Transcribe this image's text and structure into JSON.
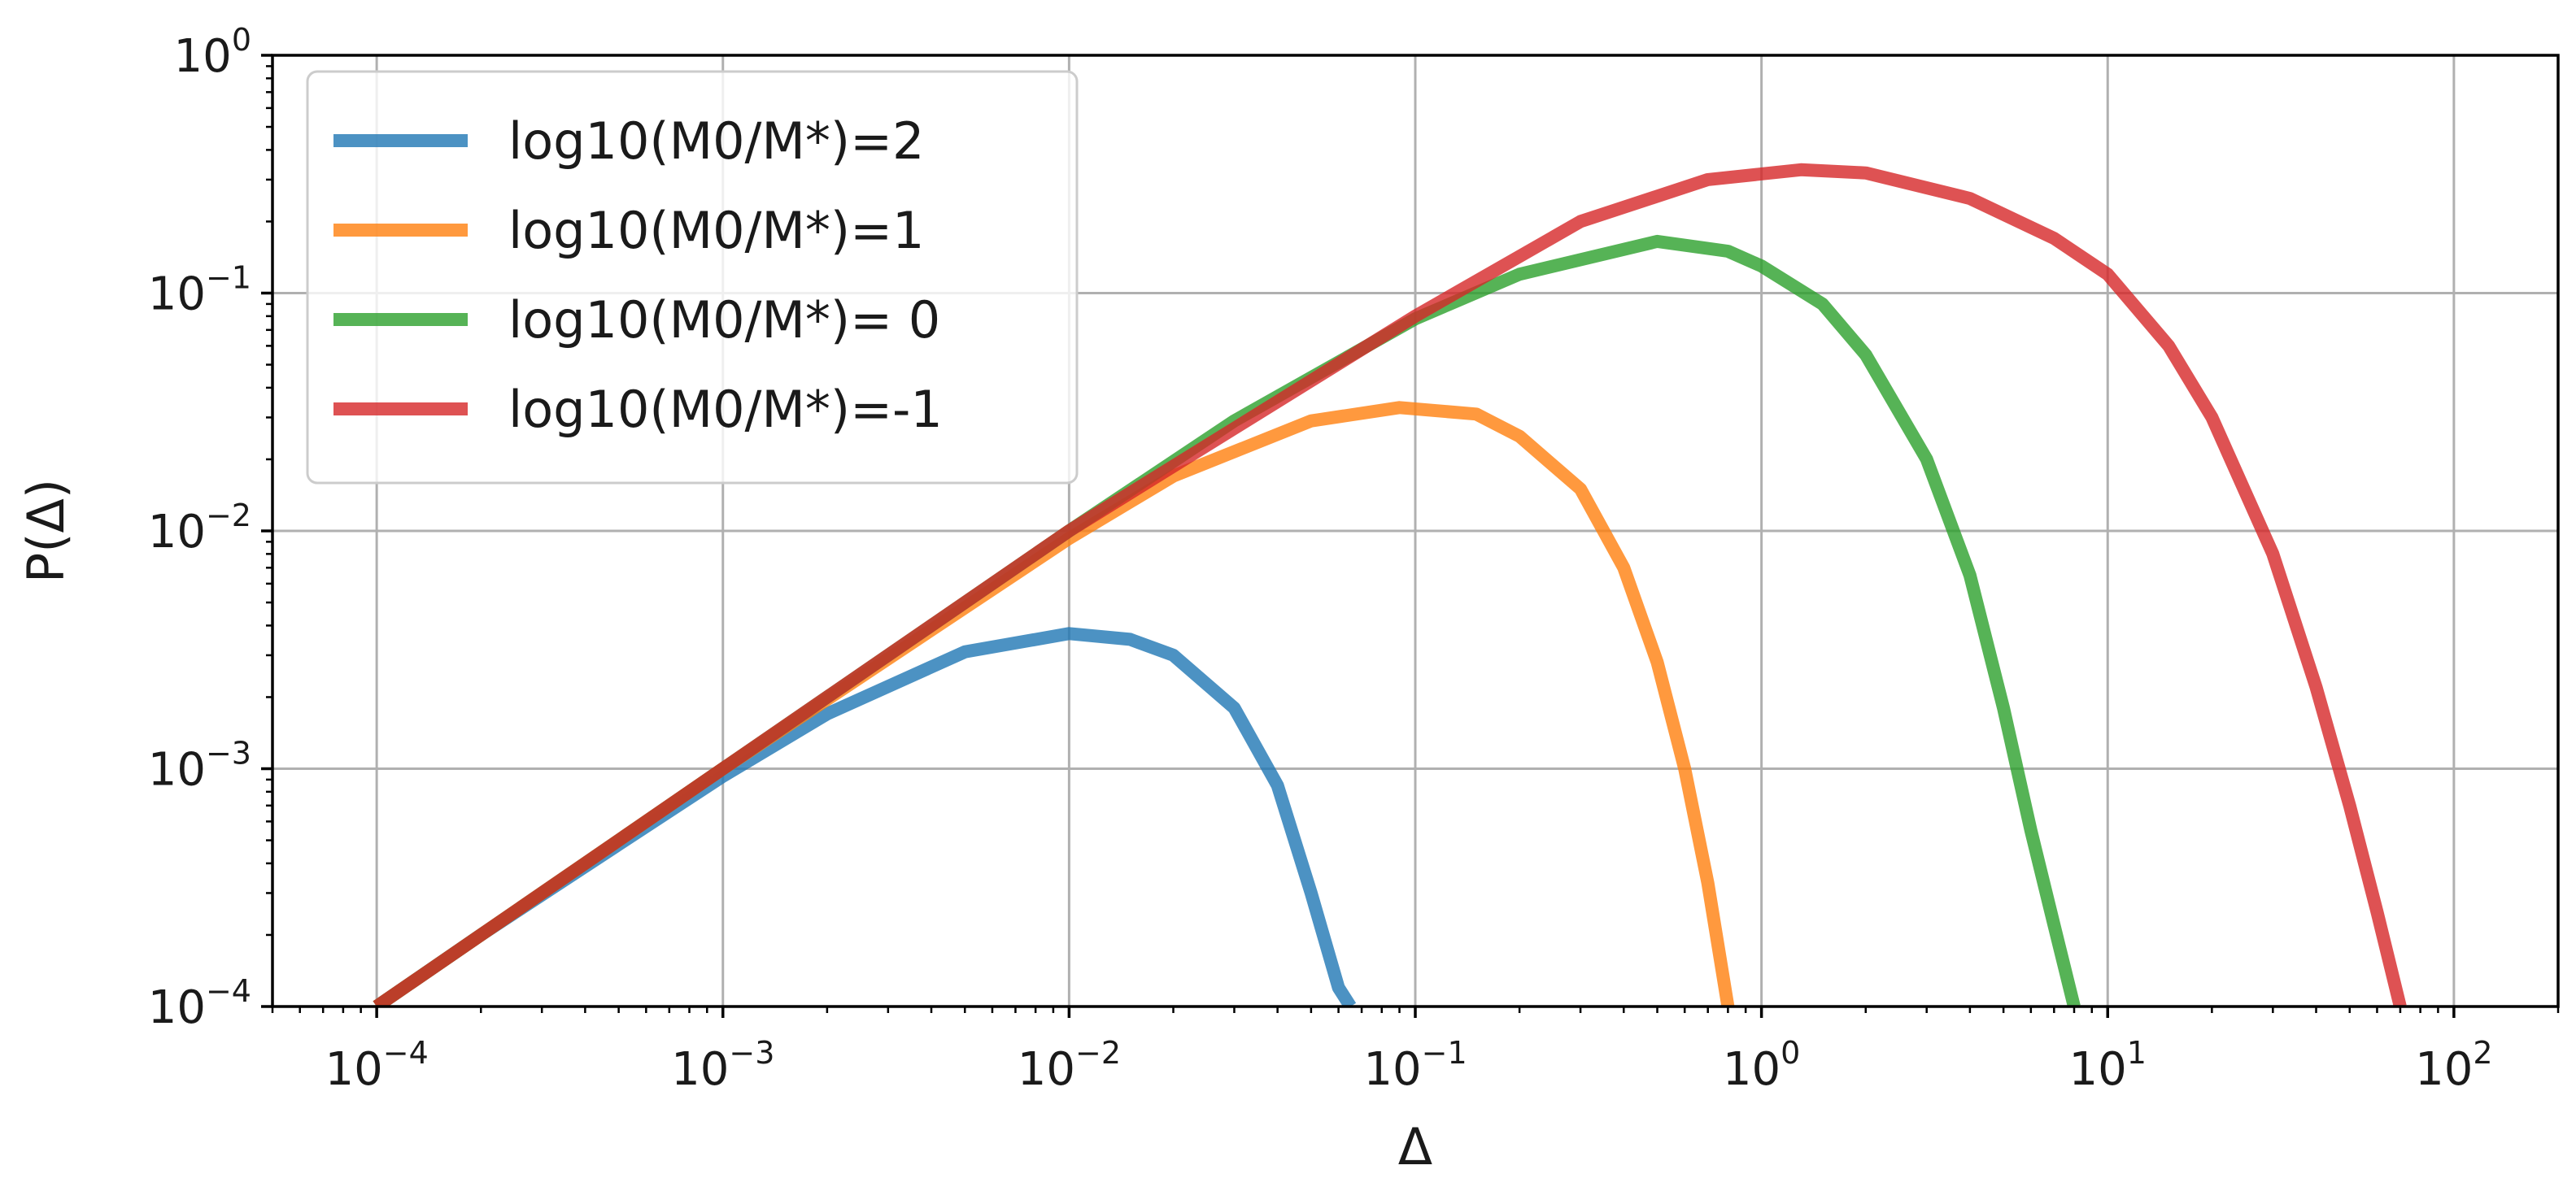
{
  "chart_data": {
    "type": "line",
    "title": "",
    "xlabel": "Δ",
    "ylabel": "P(Δ)",
    "xscale": "log",
    "yscale": "log",
    "xlim": [
      5e-05,
      200
    ],
    "ylim": [
      0.0001,
      1
    ],
    "grid": true,
    "legend_position": "top-left",
    "x_ticks": [
      {
        "value": 0.0001,
        "base": "10",
        "exp": "−4"
      },
      {
        "value": 0.001,
        "base": "10",
        "exp": "−3"
      },
      {
        "value": 0.01,
        "base": "10",
        "exp": "−2"
      },
      {
        "value": 0.1,
        "base": "10",
        "exp": "−1"
      },
      {
        "value": 1,
        "base": "10",
        "exp": "0"
      },
      {
        "value": 10,
        "base": "10",
        "exp": "1"
      },
      {
        "value": 100,
        "base": "10",
        "exp": "2"
      }
    ],
    "y_ticks": [
      {
        "value": 0.0001,
        "base": "10",
        "exp": "−4"
      },
      {
        "value": 0.001,
        "base": "10",
        "exp": "−3"
      },
      {
        "value": 0.01,
        "base": "10",
        "exp": "−2"
      },
      {
        "value": 0.1,
        "base": "10",
        "exp": "−1"
      },
      {
        "value": 1,
        "base": "10",
        "exp": "0"
      }
    ],
    "series": [
      {
        "name": "log10(M0/M*)=2",
        "color": "#1f77b4",
        "points": [
          [
            0.0001,
            0.0001
          ],
          [
            0.0002,
            0.0002
          ],
          [
            0.0005,
            0.00048
          ],
          [
            0.001,
            0.00093
          ],
          [
            0.002,
            0.0017
          ],
          [
            0.005,
            0.0031
          ],
          [
            0.01,
            0.0037
          ],
          [
            0.015,
            0.0035
          ],
          [
            0.02,
            0.003
          ],
          [
            0.03,
            0.0018
          ],
          [
            0.04,
            0.00085
          ],
          [
            0.05,
            0.0003
          ],
          [
            0.06,
            0.00012
          ],
          [
            0.065,
            0.0001
          ]
        ]
      },
      {
        "name": "log10(M0/M*)=1",
        "color": "#ff7f0e",
        "points": [
          [
            0.0001,
            0.0001
          ],
          [
            0.001,
            0.001
          ],
          [
            0.01,
            0.0093
          ],
          [
            0.02,
            0.017
          ],
          [
            0.05,
            0.029
          ],
          [
            0.09,
            0.033
          ],
          [
            0.15,
            0.031
          ],
          [
            0.2,
            0.025
          ],
          [
            0.3,
            0.015
          ],
          [
            0.4,
            0.007
          ],
          [
            0.5,
            0.0028
          ],
          [
            0.6,
            0.001
          ],
          [
            0.7,
            0.00033
          ],
          [
            0.8,
            0.0001
          ]
        ]
      },
      {
        "name": "log10(M0/M*)= 0",
        "color": "#2ca02c",
        "points": [
          [
            0.0001,
            0.0001
          ],
          [
            0.01,
            0.01
          ],
          [
            0.03,
            0.029
          ],
          [
            0.1,
            0.078
          ],
          [
            0.2,
            0.12
          ],
          [
            0.5,
            0.165
          ],
          [
            0.8,
            0.15
          ],
          [
            1,
            0.13
          ],
          [
            1.5,
            0.09
          ],
          [
            2,
            0.055
          ],
          [
            3,
            0.02
          ],
          [
            4,
            0.0065
          ],
          [
            5,
            0.0018
          ],
          [
            6,
            0.00055
          ],
          [
            7,
            0.00022
          ],
          [
            8,
            0.0001
          ]
        ]
      },
      {
        "name": "log10(M0/M*)=-1",
        "color": "#d62728",
        "points": [
          [
            0.0001,
            0.0001
          ],
          [
            0.01,
            0.01
          ],
          [
            0.1,
            0.08
          ],
          [
            0.3,
            0.2
          ],
          [
            0.7,
            0.3
          ],
          [
            1.3,
            0.33
          ],
          [
            2,
            0.32
          ],
          [
            4,
            0.25
          ],
          [
            7,
            0.17
          ],
          [
            10,
            0.12
          ],
          [
            15,
            0.06
          ],
          [
            20,
            0.03
          ],
          [
            30,
            0.008
          ],
          [
            40,
            0.0022
          ],
          [
            50,
            0.0007
          ],
          [
            60,
            0.00025
          ],
          [
            70,
            0.0001
          ]
        ]
      }
    ]
  }
}
